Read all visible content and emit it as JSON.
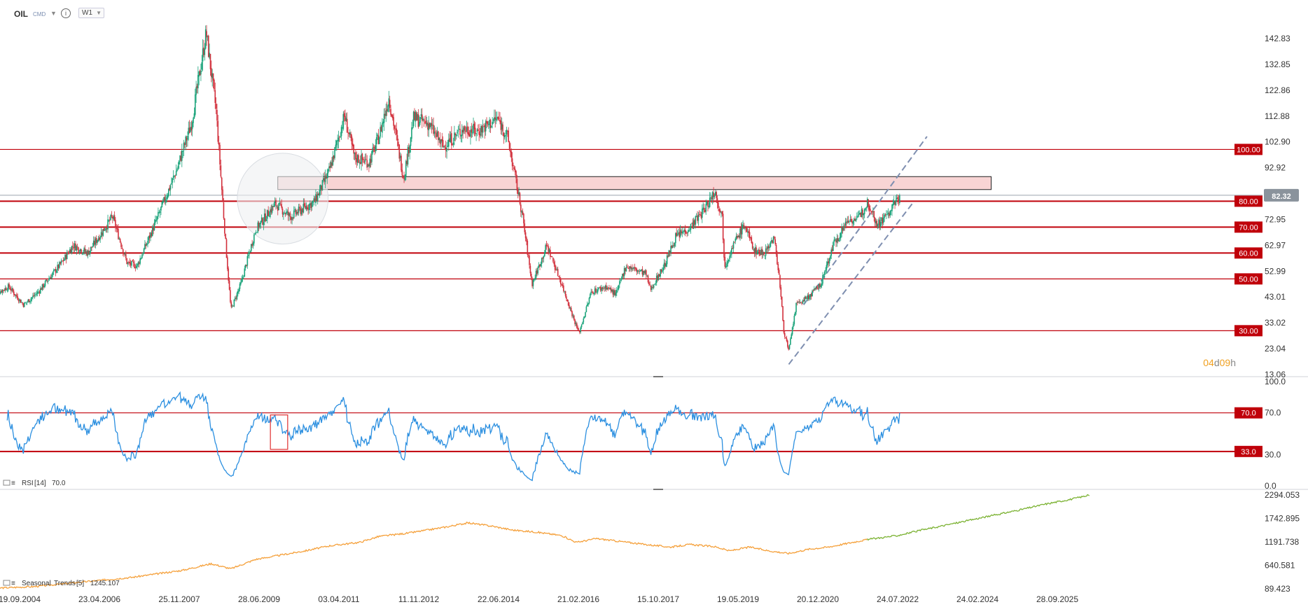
{
  "header": {
    "symbol": "OIL",
    "type": "CMD",
    "info_icon": "info-icon",
    "timeframe": "W1"
  },
  "colors": {
    "bull": "#1aa37a",
    "bear": "#d22f3b",
    "level": "#c0000a",
    "rsi": "#2b8fe0",
    "seasonal_past": "#f5a03a",
    "seasonal_future": "#7bb232",
    "channel": "#7f8fb0",
    "zone_fill": "#f7cccc",
    "timer": "#f0a020"
  },
  "chart_data": [
    {
      "type": "candlestick",
      "name": "OIL",
      "ylim": [
        13.06,
        148
      ],
      "y_ticks": [
        "142.83",
        "132.85",
        "122.86",
        "112.88",
        "102.90",
        "92.92",
        "82.93",
        "72.95",
        "62.97",
        "52.99",
        "43.01",
        "33.02",
        "23.04",
        "13.06"
      ],
      "current_price": "82.32",
      "levels": [
        {
          "value": 100.0,
          "label": "100.00"
        },
        {
          "value": 80.0,
          "label": "80.00"
        },
        {
          "value": 70.0,
          "label": "70.00"
        },
        {
          "value": 60.0,
          "label": "60.00"
        },
        {
          "value": 50.0,
          "label": "50.00"
        },
        {
          "value": 30.0,
          "label": "30.00"
        }
      ],
      "resistance_zone": {
        "x_start": 2009.95,
        "x_end": 2024.4,
        "y_low": 84.5,
        "y_high": 89.5
      },
      "channel_lower": [
        [
          2020.3,
          17.0
        ],
        [
          2022.8,
          79.0
        ]
      ],
      "channel_upper": [
        [
          2020.6,
          40.0
        ],
        [
          2023.1,
          105.0
        ]
      ],
      "highlight_circle": {
        "x": 2010.05,
        "y": 81,
        "r_years": 0.8
      },
      "price_path": [
        [
          2004.2,
          44
        ],
        [
          2004.5,
          47
        ],
        [
          2004.8,
          40
        ],
        [
          2005.1,
          45
        ],
        [
          2005.6,
          57
        ],
        [
          2005.8,
          63
        ],
        [
          2006.1,
          60
        ],
        [
          2006.6,
          74
        ],
        [
          2006.9,
          56
        ],
        [
          2007.1,
          55
        ],
        [
          2007.5,
          73
        ],
        [
          2007.9,
          92
        ],
        [
          2008.2,
          110
        ],
        [
          2008.5,
          145
        ],
        [
          2008.7,
          115
        ],
        [
          2008.9,
          62
        ],
        [
          2009.0,
          38
        ],
        [
          2009.2,
          48
        ],
        [
          2009.5,
          69
        ],
        [
          2009.9,
          79
        ],
        [
          2010.2,
          74
        ],
        [
          2010.45,
          77
        ],
        [
          2010.7,
          80
        ],
        [
          2011.0,
          92
        ],
        [
          2011.3,
          113
        ],
        [
          2011.5,
          97
        ],
        [
          2011.8,
          95
        ],
        [
          2012.0,
          105
        ],
        [
          2012.2,
          120
        ],
        [
          2012.5,
          89
        ],
        [
          2012.7,
          112
        ],
        [
          2013.0,
          110
        ],
        [
          2013.3,
          101
        ],
        [
          2013.7,
          108
        ],
        [
          2014.0,
          107
        ],
        [
          2014.4,
          112
        ],
        [
          2014.6,
          105
        ],
        [
          2014.9,
          75
        ],
        [
          2015.1,
          48
        ],
        [
          2015.4,
          63
        ],
        [
          2015.7,
          48
        ],
        [
          2015.9,
          37
        ],
        [
          2016.05,
          29
        ],
        [
          2016.3,
          45
        ],
        [
          2016.6,
          47
        ],
        [
          2016.8,
          44
        ],
        [
          2017.0,
          55
        ],
        [
          2017.4,
          52
        ],
        [
          2017.5,
          46
        ],
        [
          2017.8,
          56
        ],
        [
          2018.0,
          66
        ],
        [
          2018.3,
          70
        ],
        [
          2018.6,
          77
        ],
        [
          2018.8,
          84
        ],
        [
          2018.95,
          74
        ],
        [
          2019.0,
          55
        ],
        [
          2019.2,
          64
        ],
        [
          2019.4,
          71
        ],
        [
          2019.6,
          61
        ],
        [
          2019.8,
          60
        ],
        [
          2020.0,
          66
        ],
        [
          2020.1,
          52
        ],
        [
          2020.2,
          30
        ],
        [
          2020.3,
          22
        ],
        [
          2020.45,
          40
        ],
        [
          2020.7,
          43
        ],
        [
          2020.95,
          48
        ],
        [
          2021.2,
          63
        ],
        [
          2021.5,
          73
        ],
        [
          2021.7,
          73
        ],
        [
          2021.9,
          80
        ],
        [
          2022.1,
          71
        ],
        [
          2022.35,
          76
        ],
        [
          2022.55,
          82.32
        ]
      ]
    },
    {
      "type": "line",
      "name": "RSI",
      "indicator_label": "RSI",
      "period": "[14]",
      "current_value": "70.0",
      "ylim": [
        0,
        100
      ],
      "y_ticks": [
        "100.0",
        "70.0",
        "30.0",
        "0.0"
      ],
      "levels": [
        {
          "value": 70,
          "label": "70.0"
        },
        {
          "value": 33,
          "label": "33.0"
        }
      ],
      "highlight_box": {
        "x_start": 2009.8,
        "x_end": 2010.15,
        "y_low": 35,
        "y_high": 68
      }
    },
    {
      "type": "line",
      "name": "Seasonal Trends",
      "indicator_label": "Seasonal",
      "indicator_sub": "Trends",
      "period": "[5]",
      "current_value": "1245.107",
      "ylim": [
        89.423,
        2294.053
      ],
      "y_ticks": [
        "2294.053",
        "1742.895",
        "1191.738",
        "640.581",
        "89.423"
      ],
      "future_start": 2021.9,
      "values": [
        [
          2004.1,
          100
        ],
        [
          2005.0,
          140
        ],
        [
          2006.0,
          250
        ],
        [
          2007.0,
          360
        ],
        [
          2008.0,
          520
        ],
        [
          2008.6,
          680
        ],
        [
          2009.0,
          560
        ],
        [
          2009.5,
          780
        ],
        [
          2010.0,
          880
        ],
        [
          2010.5,
          980
        ],
        [
          2011.0,
          1100
        ],
        [
          2011.6,
          1180
        ],
        [
          2012.0,
          1320
        ],
        [
          2012.6,
          1400
        ],
        [
          2013.3,
          1530
        ],
        [
          2013.8,
          1640
        ],
        [
          2014.3,
          1560
        ],
        [
          2014.7,
          1470
        ],
        [
          2015.2,
          1420
        ],
        [
          2015.7,
          1340
        ],
        [
          2016.0,
          1180
        ],
        [
          2016.4,
          1270
        ],
        [
          2016.9,
          1200
        ],
        [
          2017.4,
          1130
        ],
        [
          2017.9,
          1070
        ],
        [
          2018.3,
          1130
        ],
        [
          2018.8,
          1080
        ],
        [
          2019.1,
          980
        ],
        [
          2019.5,
          1070
        ],
        [
          2019.9,
          980
        ],
        [
          2020.3,
          920
        ],
        [
          2020.7,
          1020
        ],
        [
          2021.1,
          1070
        ],
        [
          2021.5,
          1160
        ],
        [
          2021.9,
          1250
        ],
        [
          2022.5,
          1340
        ],
        [
          2023.0,
          1470
        ],
        [
          2023.5,
          1590
        ],
        [
          2024.0,
          1710
        ],
        [
          2024.5,
          1830
        ],
        [
          2025.0,
          1950
        ],
        [
          2025.5,
          2080
        ],
        [
          2026.0,
          2190
        ],
        [
          2026.4,
          2294
        ]
      ]
    }
  ],
  "x_axis": {
    "ticks": [
      "19.09.2004",
      "23.04.2006",
      "25.11.2007",
      "28.06.2009",
      "03.04.2011",
      "11.11.2012",
      "22.06.2014",
      "21.02.2016",
      "15.10.2017",
      "19.05.2019",
      "20.12.2020",
      "24.07.2022",
      "24.02.2024",
      "28.09.2025"
    ]
  },
  "timer": {
    "days": "04",
    "d_unit": "d",
    "hours": "09",
    "h_unit": "h"
  }
}
